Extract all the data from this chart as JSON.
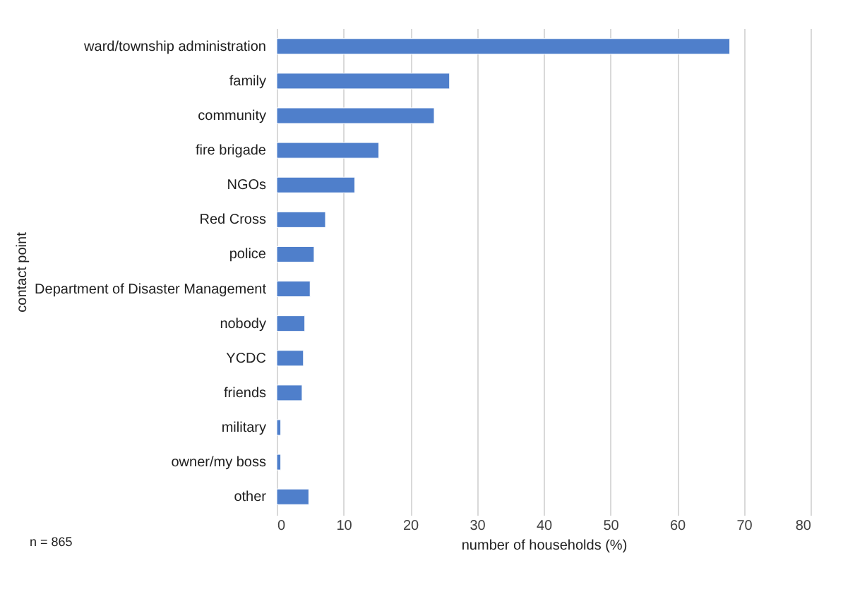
{
  "chart_data": {
    "type": "bar",
    "orientation": "horizontal",
    "xlabel": "number of households (%)",
    "ylabel": "contact point",
    "categories": [
      "ward/township administration",
      "family",
      "community",
      "fire brigade",
      "NGOs",
      "Red Cross",
      "police",
      "Department of Disaster Management",
      "nobody",
      "YCDC",
      "friends",
      "military",
      "owner/my boss",
      "other"
    ],
    "values": [
      67.9,
      25.9,
      23.6,
      15.3,
      11.7,
      7.3,
      5.6,
      5.0,
      4.2,
      4.0,
      3.8,
      0.6,
      0.6,
      4.8
    ],
    "color": "#4f7fcb",
    "xlim": [
      0,
      80
    ],
    "xticks": [
      0,
      10,
      20,
      30,
      40,
      50,
      60,
      70,
      80
    ],
    "grid": "x",
    "annotations": [
      "n = 865"
    ]
  }
}
